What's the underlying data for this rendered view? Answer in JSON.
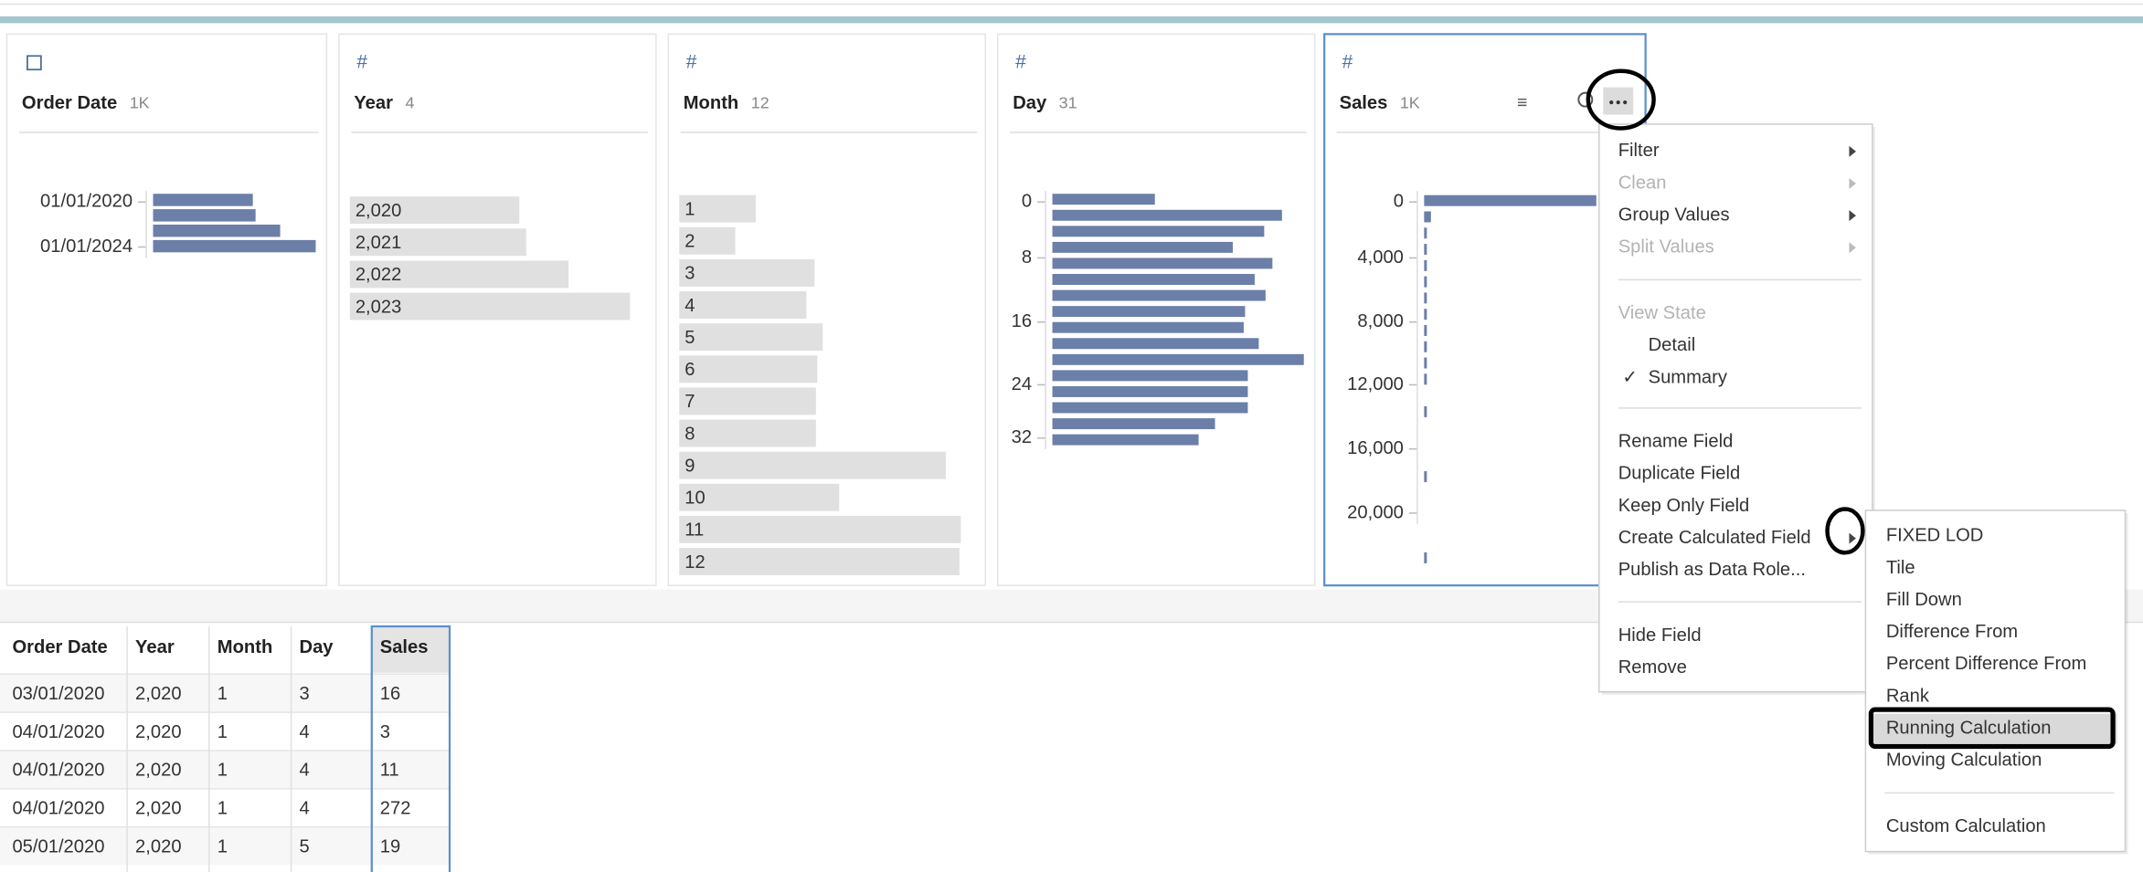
{
  "cards": [
    {
      "name": "Order Date",
      "count": "1K",
      "bar_color": "#6b7fa8",
      "axis_labels": [
        "01/01/2020",
        "01/01/2024"
      ],
      "bars": [
        73,
        75,
        93,
        119
      ]
    },
    {
      "name": "Year",
      "count": "4",
      "bar_color": "#e0e0e0",
      "categories": [
        "2,020",
        "2,021",
        "2,022",
        "2,023"
      ],
      "bars": [
        124,
        129,
        160,
        205
      ]
    },
    {
      "name": "Month",
      "count": "12",
      "bar_color": "#e0e0e0",
      "categories": [
        "1",
        "2",
        "3",
        "4",
        "5",
        "6",
        "7",
        "8",
        "9",
        "10",
        "11",
        "12"
      ],
      "bars": [
        56,
        41,
        99,
        93,
        105,
        101,
        100,
        100,
        195,
        117,
        206,
        205
      ]
    },
    {
      "name": "Day",
      "count": "31",
      "bar_color": "#6b7fa8",
      "axis_labels": [
        "0",
        "8",
        "16",
        "24",
        "32"
      ],
      "bars": [
        75,
        168,
        155,
        132,
        161,
        148,
        156,
        141,
        140,
        151,
        184,
        143,
        143,
        143,
        119,
        107
      ]
    },
    {
      "name": "Sales",
      "count": "1K",
      "bar_color": "#6b7fa8",
      "axis_labels": [
        "0",
        "4,000",
        "8,000",
        "12,000",
        "16,000",
        "20,000"
      ],
      "bars": [
        126,
        5,
        2,
        2,
        2,
        2,
        2,
        2,
        2,
        2,
        2,
        2,
        0,
        2,
        0,
        0,
        0,
        2,
        0,
        0,
        0,
        0,
        2
      ]
    }
  ],
  "menu": {
    "groups": [
      [
        {
          "label": "Filter",
          "submenu": true
        },
        {
          "label": "Clean",
          "submenu": true,
          "disabled": true
        },
        {
          "label": "Group Values",
          "submenu": true
        },
        {
          "label": "Split Values",
          "submenu": true,
          "disabled": true
        }
      ],
      [
        {
          "label": "View State",
          "disabled": true
        },
        {
          "label": "Detail",
          "indent": true
        },
        {
          "label": "Summary",
          "indent": true,
          "checked": true
        }
      ],
      [
        {
          "label": "Rename Field"
        },
        {
          "label": "Duplicate Field"
        },
        {
          "label": "Keep Only Field"
        },
        {
          "label": "Create Calculated Field",
          "submenu": true
        },
        {
          "label": "Publish as Data Role..."
        }
      ],
      [
        {
          "label": "Hide Field"
        },
        {
          "label": "Remove"
        }
      ]
    ]
  },
  "submenu": {
    "groups": [
      [
        {
          "label": "FIXED LOD"
        },
        {
          "label": "Tile"
        },
        {
          "label": "Fill Down"
        },
        {
          "label": "Difference From"
        },
        {
          "label": "Percent Difference From"
        },
        {
          "label": "Rank"
        },
        {
          "label": "Running Calculation",
          "highlighted": true
        },
        {
          "label": "Moving Calculation"
        }
      ],
      [
        {
          "label": "Custom Calculation"
        }
      ]
    ]
  },
  "table": {
    "columns": [
      "Order Date",
      "Year",
      "Month",
      "Day",
      "Sales"
    ],
    "rows": [
      [
        "03/01/2020",
        "2,020",
        "1",
        "3",
        "16"
      ],
      [
        "04/01/2020",
        "2,020",
        "1",
        "4",
        "3"
      ],
      [
        "04/01/2020",
        "2,020",
        "1",
        "4",
        "11"
      ],
      [
        "04/01/2020",
        "2,020",
        "1",
        "4",
        "272"
      ],
      [
        "05/01/2020",
        "2,020",
        "1",
        "5",
        "19"
      ]
    ]
  }
}
